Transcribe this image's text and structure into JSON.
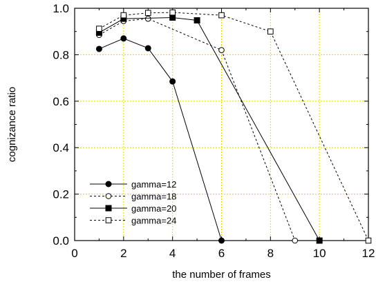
{
  "chart_data": {
    "type": "line",
    "title": "",
    "xlabel": "the number of frames",
    "ylabel": "cognizance ratio",
    "xlim": [
      0,
      12
    ],
    "ylim": [
      0,
      1.0
    ],
    "xticks": [
      "0",
      "2",
      "4",
      "6",
      "8",
      "10",
      "12"
    ],
    "yticks": [
      "0.0",
      "0.2",
      "0.4",
      "0.6",
      "0.8",
      "1.0"
    ],
    "grid": true,
    "grid_style": "dotted",
    "grid_color": "#e8d800",
    "legend_position": "bottom-left",
    "series": [
      {
        "name": "gamma=12",
        "line": "solid",
        "marker": "filled-circle",
        "x": [
          1,
          2,
          3,
          4,
          6
        ],
        "y": [
          0.825,
          0.87,
          0.828,
          0.685,
          0.0
        ]
      },
      {
        "name": "gamma=18",
        "line": "dotted",
        "marker": "open-circle",
        "x": [
          1,
          2,
          3,
          6,
          9
        ],
        "y": [
          0.885,
          0.945,
          0.955,
          0.82,
          0.0
        ]
      },
      {
        "name": "gamma=20",
        "line": "solid",
        "marker": "filled-square",
        "x": [
          1,
          2,
          4,
          5,
          10
        ],
        "y": [
          0.895,
          0.955,
          0.96,
          0.948,
          0.0
        ]
      },
      {
        "name": "gamma=24",
        "line": "dotted",
        "marker": "open-square",
        "x": [
          1,
          2,
          3,
          4,
          6,
          8,
          12
        ],
        "y": [
          0.912,
          0.97,
          0.98,
          0.982,
          0.97,
          0.9,
          0.0
        ]
      }
    ]
  }
}
